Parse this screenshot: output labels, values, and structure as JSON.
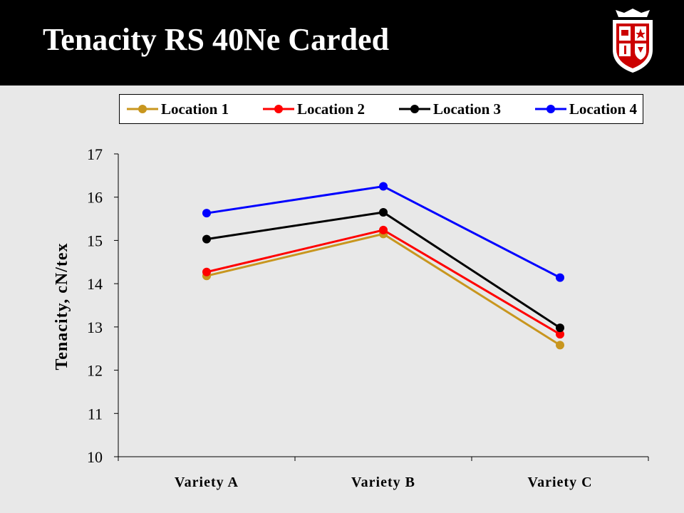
{
  "header": {
    "title": "Tenacity RS 40Ne Carded",
    "logo_icon": "university-shield-icon"
  },
  "chart_data": {
    "type": "line",
    "categories": [
      "Variety A",
      "Variety B",
      "Variety C"
    ],
    "series": [
      {
        "name": "Location 1",
        "color": "#c8961e",
        "values": [
          14.18,
          15.15,
          12.58
        ]
      },
      {
        "name": "Location 2",
        "color": "#ff0000",
        "values": [
          14.27,
          15.24,
          12.83
        ]
      },
      {
        "name": "Location 3",
        "color": "#000000",
        "values": [
          15.03,
          15.65,
          12.98
        ]
      },
      {
        "name": "Location 4",
        "color": "#0000ff",
        "values": [
          15.63,
          16.25,
          14.14
        ]
      }
    ],
    "title": "",
    "xlabel": "",
    "ylabel": "Tenacity, cN/tex",
    "ylim": [
      10,
      17
    ],
    "yticks": [
      "10",
      "11",
      "12",
      "13",
      "14",
      "15",
      "16",
      "17"
    ],
    "grid": false,
    "legend_position": "top"
  }
}
